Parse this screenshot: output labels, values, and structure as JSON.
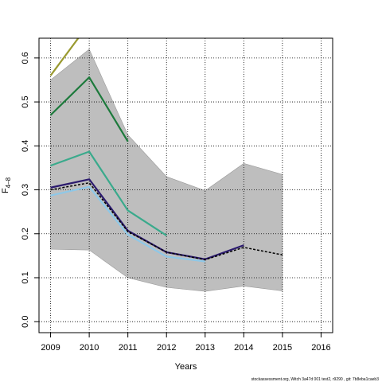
{
  "chart_data": {
    "type": "line",
    "title": "",
    "xlabel": "Years",
    "ylabel": "F",
    "ylabel_subscript": "4–8",
    "xlim": [
      2008.7,
      2016.3
    ],
    "ylim": [
      -0.025,
      0.645
    ],
    "x_ticks": [
      2009,
      2010,
      2011,
      2012,
      2013,
      2014,
      2015,
      2016
    ],
    "x_tick_labels": [
      "2009",
      "2010",
      "2011",
      "2012",
      "2013",
      "2014",
      "2015",
      "2016"
    ],
    "y_ticks": [
      0.0,
      0.1,
      0.2,
      0.3,
      0.4,
      0.5,
      0.6
    ],
    "y_tick_labels": [
      "0.0",
      "0.1",
      "0.2",
      "0.3",
      "0.4",
      "0.5",
      "0.6"
    ],
    "grid": true,
    "confidence_band": {
      "color": "#bebebe",
      "x": [
        2009,
        2010,
        2011,
        2012,
        2013,
        2014,
        2015
      ],
      "upper": [
        0.55,
        0.62,
        0.425,
        0.33,
        0.298,
        0.36,
        0.335
      ],
      "lower": [
        0.165,
        0.163,
        0.1,
        0.078,
        0.069,
        0.081,
        0.07
      ]
    },
    "series": [
      {
        "color": "#9a9a30",
        "x": [
          2009,
          2009.8
        ],
        "values": [
          0.56,
          0.655
        ]
      },
      {
        "color": "#1d7a3c",
        "x": [
          2009,
          2010,
          2011
        ],
        "values": [
          0.47,
          0.556,
          0.41
        ]
      },
      {
        "color": "#3aaa8c",
        "x": [
          2009,
          2010,
          2011,
          2012
        ],
        "values": [
          0.355,
          0.387,
          0.253,
          0.196
        ]
      },
      {
        "color": "#2b1a6e",
        "x": [
          2009,
          2010,
          2011,
          2012,
          2013,
          2014
        ],
        "values": [
          0.305,
          0.324,
          0.207,
          0.158,
          0.142,
          0.174
        ]
      },
      {
        "color": "#8ec8e8",
        "x": [
          2009,
          2010,
          2011,
          2012,
          2013
        ],
        "values": [
          0.287,
          0.307,
          0.198,
          0.148,
          0.137
        ]
      },
      {
        "color": "#000000",
        "dashed": true,
        "x": [
          2009,
          2010,
          2011,
          2012,
          2013,
          2014,
          2015
        ],
        "values": [
          0.3,
          0.316,
          0.205,
          0.158,
          0.141,
          0.169,
          0.152
        ]
      }
    ]
  },
  "footer_text": "stockassessment.org,  Witch  3a47d  001  test2,  r9290 ,  git:  7b8eba1caeb3"
}
